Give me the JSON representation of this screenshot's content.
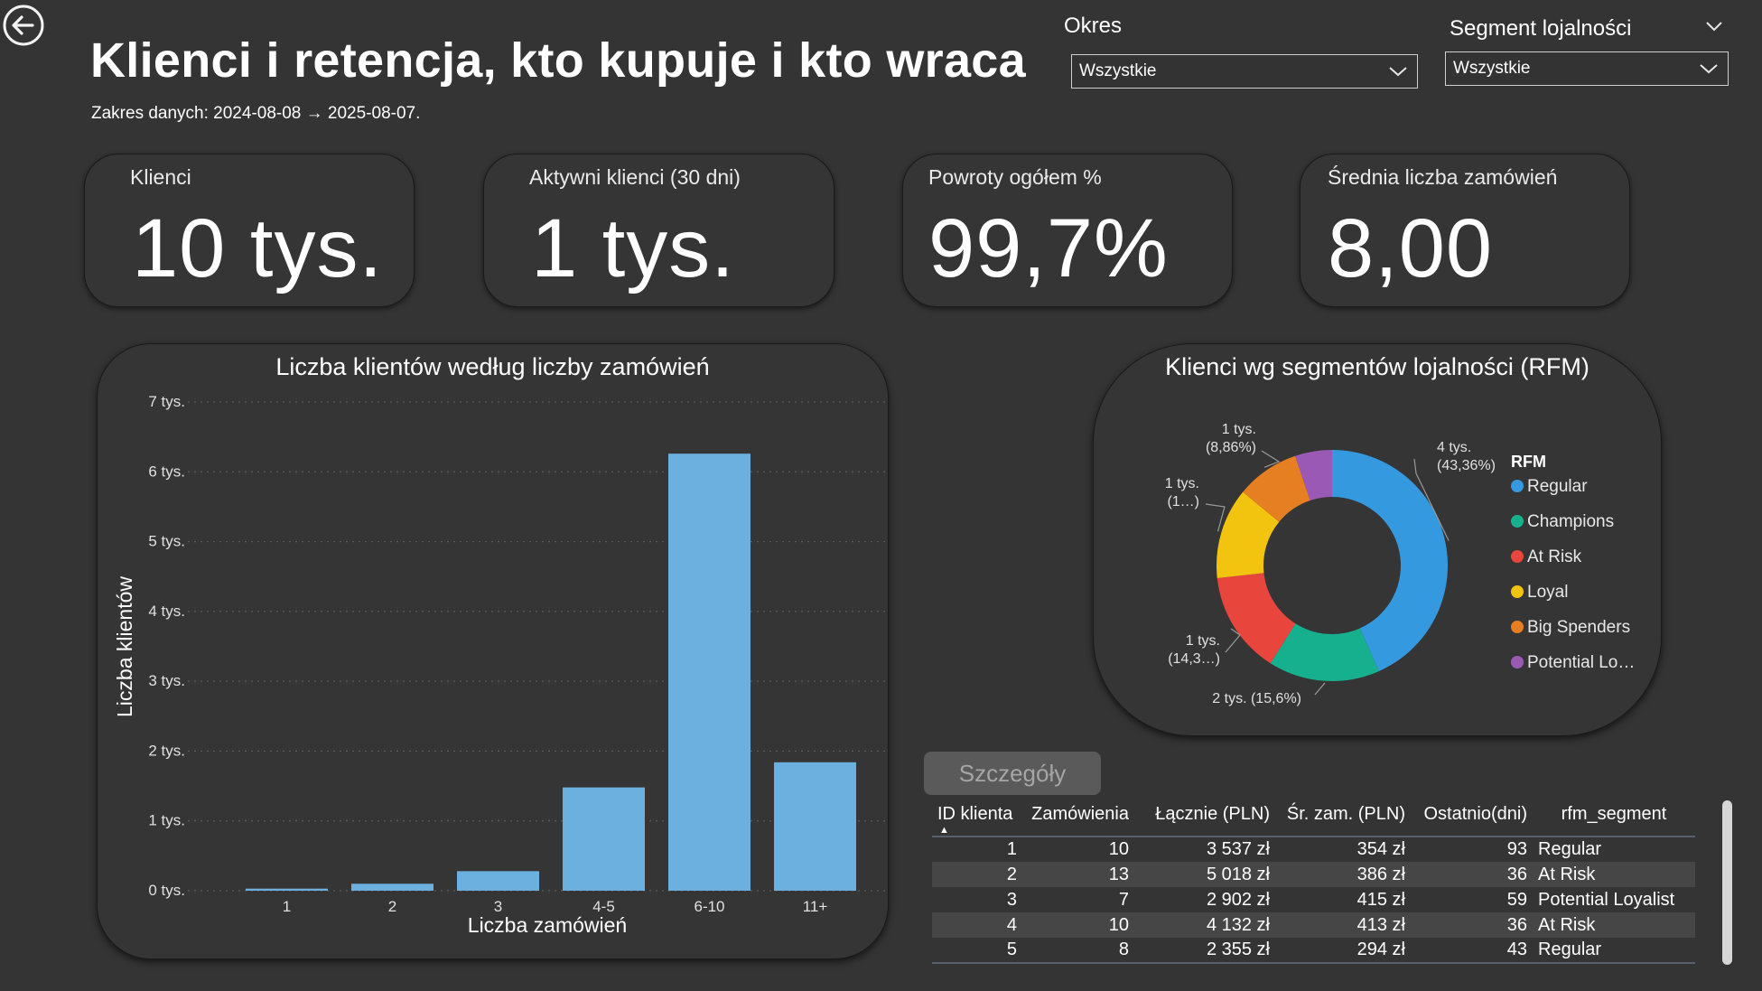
{
  "header": {
    "title": "Klienci i retencja, kto kupuje i kto wraca",
    "date_range": "Zakres danych: 2024-08-08 → 2025-08-07."
  },
  "filters": {
    "period_label": "Okres",
    "period_value": "Wszystkie",
    "segment_label": "Segment lojalności",
    "segment_value": "Wszystkie"
  },
  "kpis": [
    {
      "label": "Klienci",
      "value": "10 tys."
    },
    {
      "label": "Aktywni klienci (30 dni)",
      "value": "1 tys."
    },
    {
      "label": "Powroty ogółem %",
      "value": "99,7%"
    },
    {
      "label": "Średnia liczba zamówień",
      "value": "8,00"
    }
  ],
  "bar_panel": {
    "title": "Liczba klientów według liczby zamówień"
  },
  "donut_panel": {
    "title": "Klienci wg segmentów lojalności (RFM)"
  },
  "chart_data": [
    {
      "type": "bar",
      "title": "Liczba klientów według liczby zamówień",
      "xlabel": "Liczba zamówień",
      "ylabel": "Liczba klientów",
      "categories": [
        "1",
        "2",
        "3",
        "4-5",
        "6-10",
        "11+"
      ],
      "values": [
        30,
        100,
        280,
        1480,
        6260,
        1840
      ],
      "ylim": [
        0,
        7000
      ],
      "yticks": [
        "0 tys.",
        "1 tys.",
        "2 tys.",
        "3 tys.",
        "4 tys.",
        "5 tys.",
        "6 tys.",
        "7 tys."
      ],
      "bar_color": "#6cb0e0",
      "grid": true
    },
    {
      "type": "pie",
      "title": "Klienci wg segmentów lojalności (RFM)",
      "legend_title": "RFM",
      "legend_position": "right",
      "labels": [
        "Regular",
        "Champions",
        "At Risk",
        "Loyal",
        "Big Spenders",
        "Potential Lo…"
      ],
      "values": [
        43.36,
        15.6,
        14.3,
        12.7,
        8.86,
        5.18
      ],
      "colors": [
        "#3599e0",
        "#16b08e",
        "#e8453c",
        "#f2c40f",
        "#e67e22",
        "#9b59b6"
      ],
      "data_labels": [
        {
          "line1": "4 tys.",
          "line2": "(43,36%)"
        },
        {
          "line1": "2 tys. (15,6%)",
          "line2": ""
        },
        {
          "line1": "1 tys.",
          "line2": "(14,3…)"
        },
        {
          "line1": "1 tys.",
          "line2": "(1…)"
        },
        {
          "line1": "1 tys.",
          "line2": "(8,86%)"
        }
      ]
    }
  ],
  "details": {
    "button_label": "Szczegóły",
    "columns": [
      "ID klienta",
      "Zamówienia",
      "Łącznie (PLN)",
      "Śr. zam. (PLN)",
      "Ostatnio(dni)",
      "rfm_segment"
    ],
    "rows": [
      [
        "1",
        "10",
        "3 537 zł",
        "354 zł",
        "93",
        "Regular"
      ],
      [
        "2",
        "13",
        "5 018 zł",
        "386 zł",
        "36",
        "At Risk"
      ],
      [
        "3",
        "7",
        "2 902 zł",
        "415 zł",
        "59",
        "Potential Loyalist"
      ],
      [
        "4",
        "10",
        "4 132 zł",
        "413 zł",
        "36",
        "At Risk"
      ],
      [
        "5",
        "8",
        "2 355 zł",
        "294 zł",
        "43",
        "Regular"
      ]
    ]
  }
}
